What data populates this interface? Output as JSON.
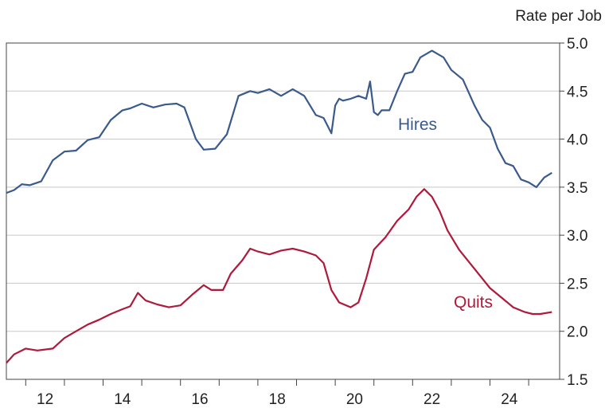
{
  "chart_data": {
    "type": "line",
    "unit_label": "Rate per Job",
    "ylim": [
      1.5,
      5.0
    ],
    "xlim": [
      2011.5,
      2025.8
    ],
    "yticks": [
      "5.0",
      "4.5",
      "4.0",
      "3.5",
      "3.0",
      "2.5",
      "2.0",
      "1.5"
    ],
    "xticks": [
      "12",
      "14",
      "16",
      "18",
      "20",
      "22",
      "24"
    ],
    "grid": "horizontal",
    "series": [
      {
        "name": "Hires",
        "color": "#3b5a8c",
        "x": [
          2011.5,
          2011.7,
          2011.9,
          2012.1,
          2012.4,
          2012.7,
          2013.0,
          2013.3,
          2013.6,
          2013.9,
          2014.2,
          2014.5,
          2014.7,
          2015.0,
          2015.3,
          2015.6,
          2015.9,
          2016.1,
          2016.4,
          2016.6,
          2016.9,
          2017.2,
          2017.5,
          2017.8,
          2018.0,
          2018.3,
          2018.6,
          2018.9,
          2019.2,
          2019.5,
          2019.7,
          2019.9,
          2020.0,
          2020.1,
          2020.2,
          2020.4,
          2020.6,
          2020.8,
          2020.9,
          2021.0,
          2021.1,
          2021.2,
          2021.4,
          2021.6,
          2021.8,
          2022.0,
          2022.2,
          2022.5,
          2022.8,
          2023.0,
          2023.3,
          2023.6,
          2023.8,
          2024.0,
          2024.2,
          2024.4,
          2024.6,
          2024.8,
          2025.0,
          2025.2,
          2025.4,
          2025.6
        ],
        "values": [
          3.44,
          3.47,
          3.53,
          3.52,
          3.56,
          3.78,
          3.87,
          3.88,
          3.99,
          4.02,
          4.2,
          4.3,
          4.32,
          4.37,
          4.33,
          4.36,
          4.37,
          4.33,
          4.0,
          3.89,
          3.9,
          4.05,
          4.45,
          4.5,
          4.48,
          4.52,
          4.45,
          4.52,
          4.45,
          4.25,
          4.22,
          4.06,
          4.35,
          4.42,
          4.4,
          4.42,
          4.45,
          4.42,
          4.6,
          4.28,
          4.25,
          4.3,
          4.3,
          4.5,
          4.68,
          4.7,
          4.85,
          4.92,
          4.85,
          4.72,
          4.62,
          4.35,
          4.2,
          4.12,
          3.9,
          3.75,
          3.72,
          3.58,
          3.55,
          3.5,
          3.6,
          3.65
        ]
      },
      {
        "name": "Quits",
        "color": "#b0193b",
        "x": [
          2011.5,
          2011.7,
          2012.0,
          2012.3,
          2012.7,
          2013.0,
          2013.3,
          2013.6,
          2013.9,
          2014.2,
          2014.5,
          2014.7,
          2014.9,
          2015.1,
          2015.4,
          2015.7,
          2016.0,
          2016.3,
          2016.6,
          2016.8,
          2017.1,
          2017.3,
          2017.6,
          2017.8,
          2018.0,
          2018.3,
          2018.6,
          2018.9,
          2019.2,
          2019.5,
          2019.7,
          2019.9,
          2020.1,
          2020.4,
          2020.6,
          2020.8,
          2021.0,
          2021.3,
          2021.6,
          2021.9,
          2022.1,
          2022.3,
          2022.5,
          2022.7,
          2022.9,
          2023.2,
          2023.5,
          2023.8,
          2024.0,
          2024.3,
          2024.6,
          2024.9,
          2025.1,
          2025.3,
          2025.6
        ],
        "values": [
          1.67,
          1.76,
          1.82,
          1.8,
          1.82,
          1.93,
          2.0,
          2.07,
          2.12,
          2.18,
          2.23,
          2.26,
          2.4,
          2.32,
          2.28,
          2.25,
          2.27,
          2.38,
          2.48,
          2.43,
          2.43,
          2.6,
          2.74,
          2.86,
          2.83,
          2.8,
          2.84,
          2.86,
          2.83,
          2.79,
          2.71,
          2.43,
          2.3,
          2.25,
          2.3,
          2.55,
          2.85,
          2.98,
          3.15,
          3.27,
          3.4,
          3.48,
          3.4,
          3.25,
          3.05,
          2.85,
          2.7,
          2.55,
          2.45,
          2.35,
          2.25,
          2.2,
          2.18,
          2.18,
          2.2
        ]
      }
    ]
  }
}
